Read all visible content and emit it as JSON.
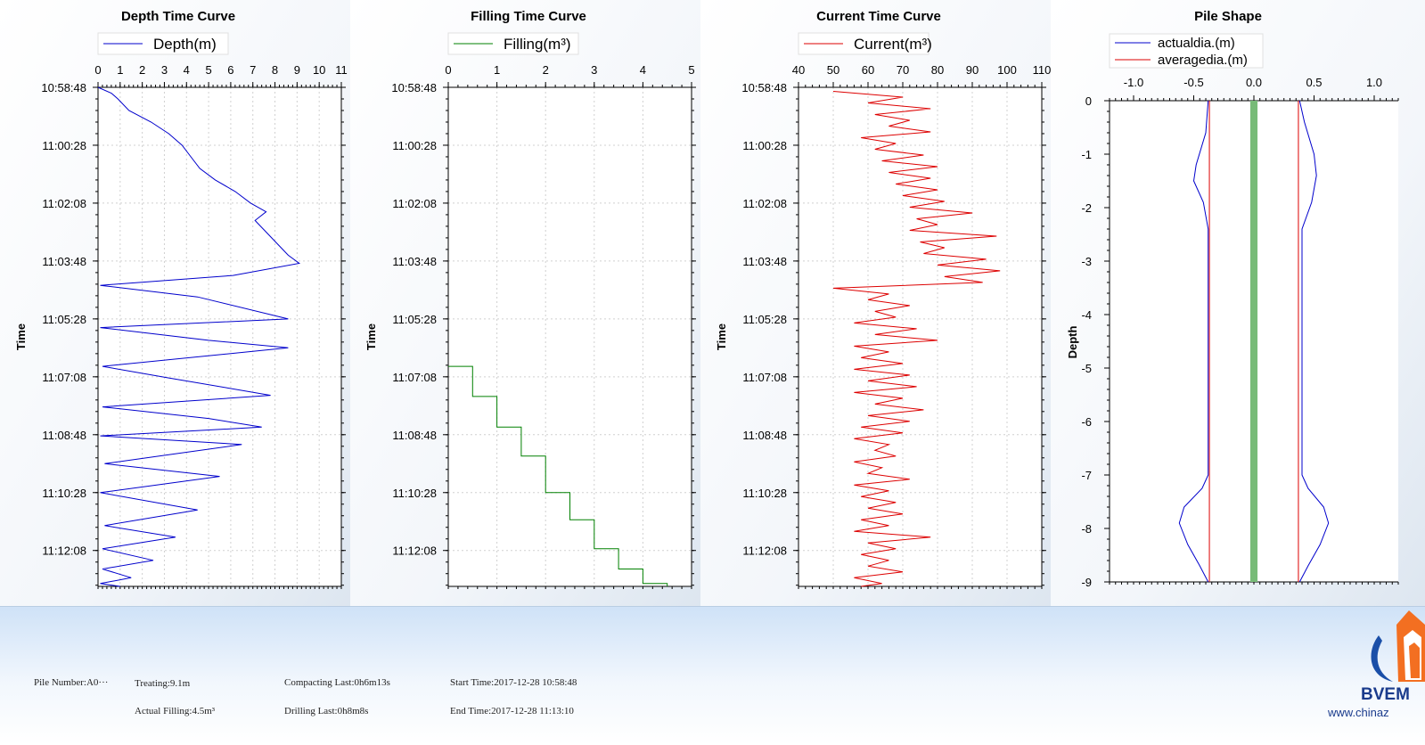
{
  "charts": [
    {
      "id": "depth",
      "title": "Depth Time Curve",
      "legend": [
        {
          "label": "Depth(m)",
          "color": "#0000cc"
        }
      ],
      "ylabel": "Time",
      "xticks": [
        "0",
        "1",
        "2",
        "3",
        "4",
        "5",
        "6",
        "7",
        "8",
        "9",
        "10",
        "11"
      ],
      "yticks": [
        "10:58:48",
        "11:00:28",
        "11:02:08",
        "11:03:48",
        "11:05:28",
        "11:07:08",
        "11:08:48",
        "11:10:28",
        "11:12:08"
      ]
    },
    {
      "id": "filling",
      "title": "Filling Time Curve",
      "legend": [
        {
          "label": "Filling(m³)",
          "color": "#008000"
        }
      ],
      "ylabel": "Time",
      "xticks": [
        "0",
        "1",
        "2",
        "3",
        "4",
        "5"
      ],
      "yticks": [
        "10:58:48",
        "11:00:28",
        "11:02:08",
        "11:03:48",
        "11:05:28",
        "11:07:08",
        "11:08:48",
        "11:10:28",
        "11:12:08"
      ]
    },
    {
      "id": "current",
      "title": "Current Time Curve",
      "legend": [
        {
          "label": "Current(m³)",
          "color": "#dd0000"
        }
      ],
      "ylabel": "Time",
      "xticks": [
        "40",
        "50",
        "60",
        "70",
        "80",
        "90",
        "100",
        "110"
      ],
      "yticks": [
        "10:58:48",
        "11:00:28",
        "11:02:08",
        "11:03:48",
        "11:05:28",
        "11:07:08",
        "11:08:48",
        "11:10:28",
        "11:12:08"
      ]
    },
    {
      "id": "pile",
      "title": "Pile Shape",
      "legend": [
        {
          "label": "actualdia.(m)",
          "color": "#0000cc"
        },
        {
          "label": "averagedia.(m)",
          "color": "#dd0000"
        }
      ],
      "ylabel": "Depth",
      "xticks": [
        "-1.0",
        "-0.5",
        "0.0",
        "0.5",
        "1.0"
      ],
      "yticks": [
        "0",
        "-1",
        "-2",
        "-3",
        "-4",
        "-5",
        "-6",
        "-7",
        "-8",
        "-9"
      ]
    }
  ],
  "chart_data": [
    {
      "type": "line",
      "title": "Depth Time Curve",
      "ylabel": "Time",
      "xlim": [
        0,
        11
      ],
      "ylim": [
        "10:58:48",
        "11:13:10"
      ],
      "series": [
        {
          "name": "Depth(m)",
          "color": "#0000cc",
          "points": [
            [
              "10:58:48",
              0
            ],
            [
              "10:58:58",
              0.6
            ],
            [
              "10:59:08",
              0.9
            ],
            [
              "10:59:28",
              1.4
            ],
            [
              "10:59:48",
              2.4
            ],
            [
              "11:00:08",
              3.2
            ],
            [
              "11:00:28",
              3.8
            ],
            [
              "11:00:48",
              4.2
            ],
            [
              "11:01:08",
              4.6
            ],
            [
              "11:01:28",
              5.3
            ],
            [
              "11:01:48",
              6.2
            ],
            [
              "11:02:08",
              6.9
            ],
            [
              "11:02:23",
              7.6
            ],
            [
              "11:02:38",
              7.1
            ],
            [
              "11:02:58",
              7.6
            ],
            [
              "11:03:18",
              8.1
            ],
            [
              "11:03:38",
              8.6
            ],
            [
              "11:03:52",
              9.1
            ],
            [
              "11:04:13",
              6.1
            ],
            [
              "11:04:30",
              0.1
            ],
            [
              "11:04:50",
              4.5
            ],
            [
              "11:05:28",
              8.6
            ],
            [
              "11:05:43",
              0.1
            ],
            [
              "11:06:05",
              5.0
            ],
            [
              "11:06:18",
              8.6
            ],
            [
              "11:06:50",
              0.2
            ],
            [
              "11:07:10",
              3.2
            ],
            [
              "11:07:40",
              7.8
            ],
            [
              "11:08:00",
              0.2
            ],
            [
              "11:08:20",
              5.0
            ],
            [
              "11:08:35",
              7.4
            ],
            [
              "11:08:50",
              0.1
            ],
            [
              "11:09:05",
              6.5
            ],
            [
              "11:09:38",
              0.3
            ],
            [
              "11:10:00",
              5.5
            ],
            [
              "11:10:28",
              0.1
            ],
            [
              "11:10:58",
              4.5
            ],
            [
              "11:11:25",
              0.3
            ],
            [
              "11:11:45",
              3.5
            ],
            [
              "11:12:05",
              0.2
            ],
            [
              "11:12:25",
              2.5
            ],
            [
              "11:12:40",
              0.2
            ],
            [
              "11:12:55",
              1.5
            ],
            [
              "11:13:05",
              0.1
            ],
            [
              "11:13:10",
              1.0
            ]
          ]
        }
      ]
    },
    {
      "type": "line",
      "title": "Filling Time Curve",
      "ylabel": "Time",
      "xlim": [
        0,
        5
      ],
      "ylim": [
        "10:58:48",
        "11:13:10"
      ],
      "series": [
        {
          "name": "Filling(m³)",
          "color": "#008000",
          "points": [
            [
              "11:06:50",
              0
            ],
            [
              "11:06:50",
              0.5
            ],
            [
              "11:07:42",
              0.5
            ],
            [
              "11:07:42",
              1.0
            ],
            [
              "11:08:35",
              1.0
            ],
            [
              "11:08:35",
              1.5
            ],
            [
              "11:09:25",
              1.5
            ],
            [
              "11:09:25",
              2.0
            ],
            [
              "11:10:28",
              2.0
            ],
            [
              "11:10:28",
              2.5
            ],
            [
              "11:11:15",
              2.5
            ],
            [
              "11:11:15",
              3.0
            ],
            [
              "11:12:05",
              3.0
            ],
            [
              "11:12:05",
              3.5
            ],
            [
              "11:12:40",
              3.5
            ],
            [
              "11:12:40",
              4.0
            ],
            [
              "11:13:05",
              4.0
            ],
            [
              "11:13:05",
              4.5
            ],
            [
              "11:13:10",
              4.5
            ]
          ]
        }
      ]
    },
    {
      "type": "line",
      "title": "Current Time Curve",
      "ylabel": "Time",
      "xlim": [
        40,
        110
      ],
      "ylim": [
        "10:58:48",
        "11:13:10"
      ],
      "series": [
        {
          "name": "Current(m³)",
          "color": "#dd0000",
          "points": [
            [
              "10:58:55",
              50
            ],
            [
              "10:59:05",
              70
            ],
            [
              "10:59:15",
              60
            ],
            [
              "10:59:25",
              78
            ],
            [
              "10:59:35",
              62
            ],
            [
              "10:59:45",
              72
            ],
            [
              "10:59:55",
              66
            ],
            [
              "11:00:05",
              78
            ],
            [
              "11:00:15",
              58
            ],
            [
              "11:00:25",
              68
            ],
            [
              "11:00:35",
              62
            ],
            [
              "11:00:45",
              76
            ],
            [
              "11:00:55",
              64
            ],
            [
              "11:01:05",
              80
            ],
            [
              "11:01:15",
              66
            ],
            [
              "11:01:25",
              78
            ],
            [
              "11:01:35",
              68
            ],
            [
              "11:01:45",
              80
            ],
            [
              "11:01:55",
              70
            ],
            [
              "11:02:05",
              82
            ],
            [
              "11:02:15",
              72
            ],
            [
              "11:02:25",
              90
            ],
            [
              "11:02:35",
              74
            ],
            [
              "11:02:45",
              80
            ],
            [
              "11:02:55",
              72
            ],
            [
              "11:03:05",
              97
            ],
            [
              "11:03:15",
              75
            ],
            [
              "11:03:25",
              82
            ],
            [
              "11:03:35",
              76
            ],
            [
              "11:03:45",
              94
            ],
            [
              "11:03:55",
              80
            ],
            [
              "11:04:05",
              98
            ],
            [
              "11:04:15",
              82
            ],
            [
              "11:04:25",
              93
            ],
            [
              "11:04:35",
              50
            ],
            [
              "11:04:45",
              66
            ],
            [
              "11:04:55",
              60
            ],
            [
              "11:05:05",
              72
            ],
            [
              "11:05:15",
              62
            ],
            [
              "11:05:25",
              68
            ],
            [
              "11:05:35",
              56
            ],
            [
              "11:05:45",
              74
            ],
            [
              "11:05:55",
              62
            ],
            [
              "11:06:05",
              80
            ],
            [
              "11:06:15",
              56
            ],
            [
              "11:06:25",
              66
            ],
            [
              "11:06:35",
              58
            ],
            [
              "11:06:45",
              70
            ],
            [
              "11:06:55",
              56
            ],
            [
              "11:07:05",
              72
            ],
            [
              "11:07:15",
              60
            ],
            [
              "11:07:25",
              74
            ],
            [
              "11:07:35",
              56
            ],
            [
              "11:07:45",
              70
            ],
            [
              "11:07:55",
              62
            ],
            [
              "11:08:05",
              76
            ],
            [
              "11:08:15",
              60
            ],
            [
              "11:08:25",
              72
            ],
            [
              "11:08:35",
              58
            ],
            [
              "11:08:45",
              70
            ],
            [
              "11:08:55",
              56
            ],
            [
              "11:09:05",
              66
            ],
            [
              "11:09:15",
              62
            ],
            [
              "11:09:25",
              68
            ],
            [
              "11:09:35",
              56
            ],
            [
              "11:09:45",
              64
            ],
            [
              "11:09:55",
              60
            ],
            [
              "11:10:05",
              72
            ],
            [
              "11:10:15",
              56
            ],
            [
              "11:10:25",
              66
            ],
            [
              "11:10:35",
              58
            ],
            [
              "11:10:45",
              68
            ],
            [
              "11:10:55",
              60
            ],
            [
              "11:11:05",
              70
            ],
            [
              "11:11:15",
              58
            ],
            [
              "11:11:25",
              66
            ],
            [
              "11:11:35",
              56
            ],
            [
              "11:11:45",
              78
            ],
            [
              "11:11:55",
              60
            ],
            [
              "11:12:05",
              68
            ],
            [
              "11:12:15",
              58
            ],
            [
              "11:12:25",
              66
            ],
            [
              "11:12:35",
              60
            ],
            [
              "11:12:45",
              70
            ],
            [
              "11:12:55",
              56
            ],
            [
              "11:13:05",
              64
            ],
            [
              "11:13:10",
              58
            ]
          ]
        }
      ]
    },
    {
      "type": "line",
      "title": "Pile Shape",
      "ylabel": "Depth",
      "xlim": [
        -1.2,
        1.2
      ],
      "ylim": [
        -9,
        0
      ],
      "series": [
        {
          "name": "actualdia.(m)",
          "color": "#0000cc",
          "points_left": [
            [
              -0.38,
              0
            ],
            [
              -0.4,
              -0.6
            ],
            [
              -0.48,
              -1.2
            ],
            [
              -0.5,
              -1.5
            ],
            [
              -0.42,
              -1.9
            ],
            [
              -0.38,
              -2.4
            ],
            [
              -0.38,
              -7.0
            ],
            [
              -0.43,
              -7.25
            ],
            [
              -0.58,
              -7.6
            ],
            [
              -0.62,
              -7.9
            ],
            [
              -0.55,
              -8.3
            ],
            [
              -0.45,
              -8.7
            ],
            [
              -0.38,
              -9.0
            ]
          ],
          "points_right": [
            [
              0.38,
              0
            ],
            [
              0.42,
              -0.4
            ],
            [
              0.5,
              -1.0
            ],
            [
              0.52,
              -1.4
            ],
            [
              0.48,
              -1.9
            ],
            [
              0.4,
              -2.4
            ],
            [
              0.4,
              -7.0
            ],
            [
              0.45,
              -7.25
            ],
            [
              0.58,
              -7.6
            ],
            [
              0.62,
              -7.9
            ],
            [
              0.55,
              -8.3
            ],
            [
              0.45,
              -8.7
            ],
            [
              0.38,
              -9.0
            ]
          ]
        },
        {
          "name": "averagedia.(m)",
          "color": "#dd0000",
          "x_values": [
            -0.37,
            0.37
          ]
        }
      ],
      "center_band": {
        "x_from": -0.03,
        "x_to": 0.03,
        "color": "#77bb77"
      }
    }
  ],
  "footer": {
    "pile_number": "Pile Number:A0···",
    "treating": "Treating:9.1m",
    "actual_filling": "Actual Filling:4.5m³",
    "compacting_last": "Compacting Last:0h6m13s",
    "drilling_last": "Drilling Last:0h8m8s",
    "start_time": "Start Time:2017-12-28 10:58:48",
    "end_time": "End Time:2017-12-28 11:13:10",
    "brand": "BVEM",
    "website": "www.chinaz"
  }
}
